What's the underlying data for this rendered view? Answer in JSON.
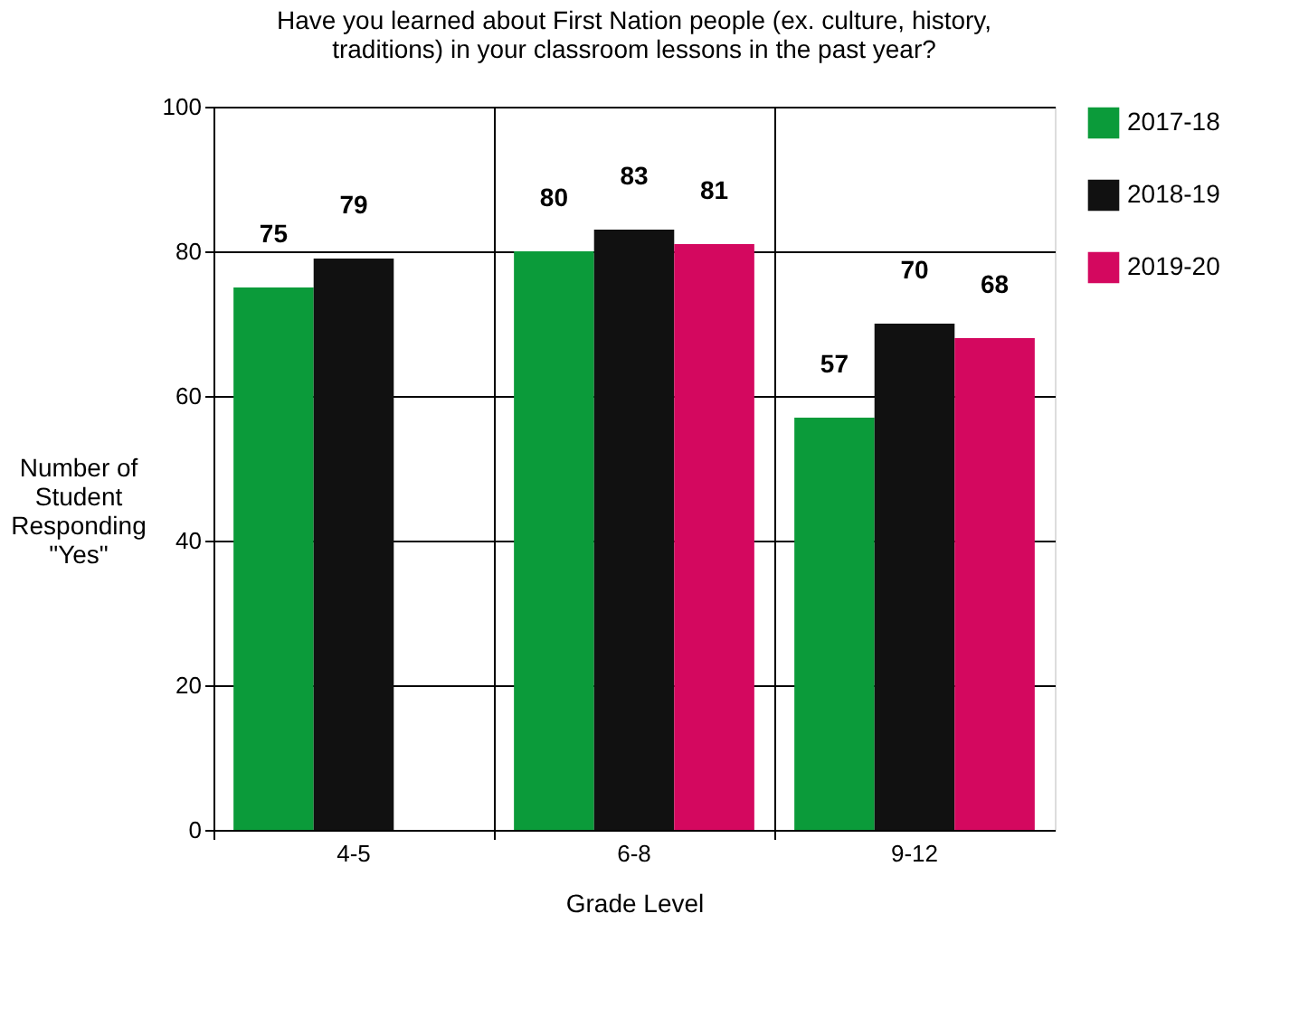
{
  "chart_data": {
    "type": "bar",
    "title": "Have you learned about First Nation people (ex. culture, history, traditions) in your classroom lessons in the past year?",
    "xlabel": "Grade Level",
    "ylabel": "Number of Student Responding \"Yes\"",
    "categories": [
      "4-5",
      "6-8",
      "9-12"
    ],
    "series": [
      {
        "name": "2017-18",
        "color": "#0b9b3a",
        "values": [
          75,
          80,
          57
        ]
      },
      {
        "name": "2018-19",
        "color": "#111111",
        "values": [
          79,
          83,
          70
        ]
      },
      {
        "name": "2019-20",
        "color": "#d4085f",
        "values": [
          null,
          81,
          68
        ]
      }
    ],
    "ylim": [
      0,
      100
    ],
    "yticks": [
      0,
      20,
      40,
      60,
      80,
      100
    ],
    "grid": true,
    "data_labels": true,
    "legend": "right"
  }
}
